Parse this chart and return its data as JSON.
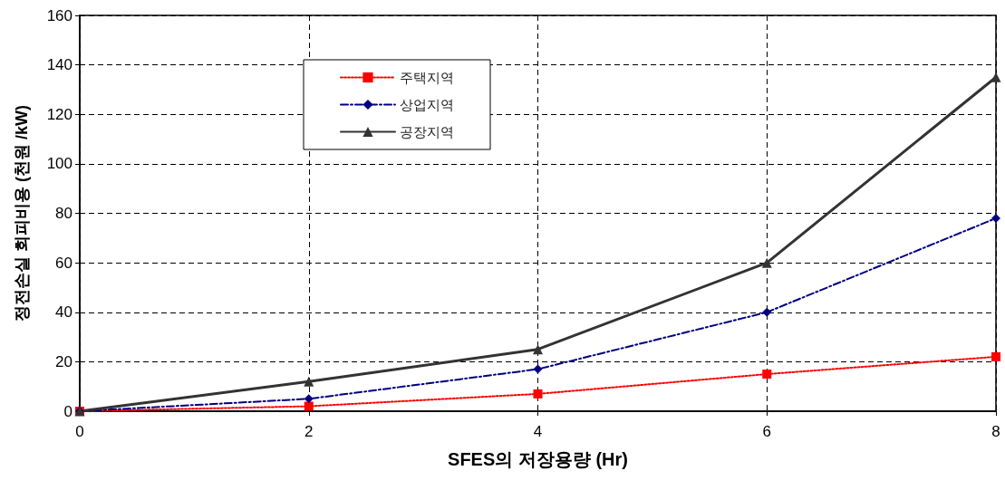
{
  "chart_data": {
    "type": "line",
    "xlabel": "SFES의 저장용량 (Hr)",
    "ylabel": "정전손실 회피비용 (천원 /kW)",
    "x": [
      0,
      2,
      4,
      6,
      8
    ],
    "series": [
      {
        "name": "주택지역",
        "color": "#ff0000",
        "marker": "square",
        "line_style": "dotted",
        "values": [
          0,
          2,
          7,
          15,
          22
        ]
      },
      {
        "name": "상업지역",
        "color": "#000080",
        "marker": "diamond",
        "line_style": "dashed",
        "values": [
          0,
          5,
          17,
          40,
          78
        ]
      },
      {
        "name": "공장지역",
        "color": "#333333",
        "marker": "triangle",
        "line_style": "solid",
        "values": [
          0,
          12,
          25,
          60,
          135
        ]
      }
    ],
    "xlim": [
      0,
      8
    ],
    "xticks": [
      0,
      2,
      4,
      6,
      8
    ],
    "ylim": [
      0,
      160
    ],
    "yticks": [
      0,
      20,
      40,
      60,
      80,
      100,
      120,
      140,
      160
    ],
    "grid": true,
    "legend": "top left"
  }
}
